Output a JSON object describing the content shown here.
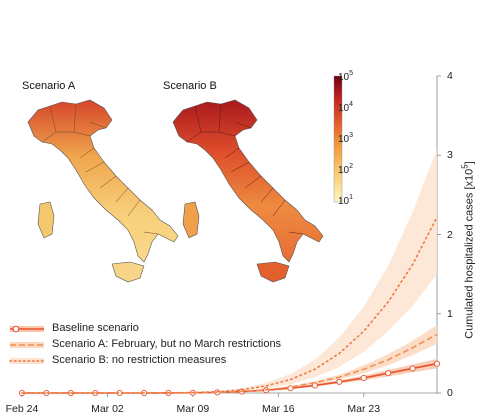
{
  "maps": {
    "a_title": "Scenario A",
    "b_title": "Scenario B"
  },
  "colorbar": {
    "base": "10",
    "exponents": [
      "5",
      "4",
      "3",
      "2",
      "1"
    ],
    "colors": [
      "#fff5c8",
      "#fbd27a",
      "#f19a3c",
      "#e0552a",
      "#b81d1e",
      "#6d0016"
    ]
  },
  "chart_data": {
    "type": "line",
    "title": "",
    "xlabel": "",
    "ylabel": "Cumulated hospitalized cases [x10",
    "ylabel_sup": "5",
    "ylabel_tail": "]",
    "x_ticks": [
      "Feb 24",
      "Mar 02",
      "Mar 09",
      "Mar 16",
      "Mar 23"
    ],
    "y_ticks": [
      "0",
      "1",
      "2",
      "3",
      "4"
    ],
    "ylim": [
      0,
      4
    ],
    "x_range_days": [
      0,
      34
    ],
    "x_days": [
      0,
      2,
      4,
      6,
      8,
      10,
      12,
      14,
      16,
      18,
      20,
      22,
      24,
      26,
      28,
      30,
      32,
      34
    ],
    "series": [
      {
        "name": "Baseline scenario",
        "color": "#e8502e",
        "style": "solid",
        "markers": true,
        "median": [
          0,
          0,
          0,
          0,
          0,
          0,
          0.001,
          0.003,
          0.008,
          0.018,
          0.035,
          0.06,
          0.095,
          0.14,
          0.19,
          0.25,
          0.31,
          0.37
        ],
        "lower": [
          0,
          0,
          0,
          0,
          0,
          0,
          0.001,
          0.002,
          0.006,
          0.015,
          0.03,
          0.05,
          0.08,
          0.12,
          0.16,
          0.21,
          0.26,
          0.31
        ],
        "upper": [
          0,
          0,
          0,
          0,
          0,
          0,
          0.001,
          0.004,
          0.01,
          0.022,
          0.042,
          0.07,
          0.11,
          0.16,
          0.22,
          0.29,
          0.36,
          0.43
        ]
      },
      {
        "name": "Scenario A: February, but no March restrictions",
        "color": "#f0915a",
        "style": "dash",
        "markers": false,
        "median": [
          0,
          0,
          0,
          0,
          0,
          0,
          0.001,
          0.003,
          0.009,
          0.02,
          0.04,
          0.075,
          0.13,
          0.2,
          0.3,
          0.42,
          0.57,
          0.74
        ],
        "lower": [
          0,
          0,
          0,
          0,
          0,
          0,
          0.001,
          0.002,
          0.007,
          0.016,
          0.033,
          0.062,
          0.11,
          0.17,
          0.25,
          0.35,
          0.48,
          0.62
        ],
        "upper": [
          0,
          0,
          0,
          0,
          0,
          0,
          0.001,
          0.004,
          0.011,
          0.024,
          0.047,
          0.088,
          0.15,
          0.23,
          0.35,
          0.49,
          0.66,
          0.86
        ]
      },
      {
        "name": "Scenario B: no restriction measures",
        "color": "#ec7a45",
        "style": "dot",
        "markers": false,
        "median": [
          0,
          0,
          0,
          0,
          0,
          0,
          0.002,
          0.006,
          0.016,
          0.04,
          0.09,
          0.17,
          0.3,
          0.5,
          0.78,
          1.15,
          1.62,
          2.22
        ],
        "lower": [
          0,
          0,
          0,
          0,
          0,
          0,
          0.001,
          0.004,
          0.011,
          0.027,
          0.06,
          0.11,
          0.2,
          0.33,
          0.52,
          0.78,
          1.1,
          1.5
        ],
        "upper": [
          0,
          0,
          0,
          0,
          0,
          0,
          0.003,
          0.009,
          0.024,
          0.058,
          0.13,
          0.24,
          0.42,
          0.7,
          1.09,
          1.6,
          2.28,
          3.08
        ]
      }
    ]
  }
}
